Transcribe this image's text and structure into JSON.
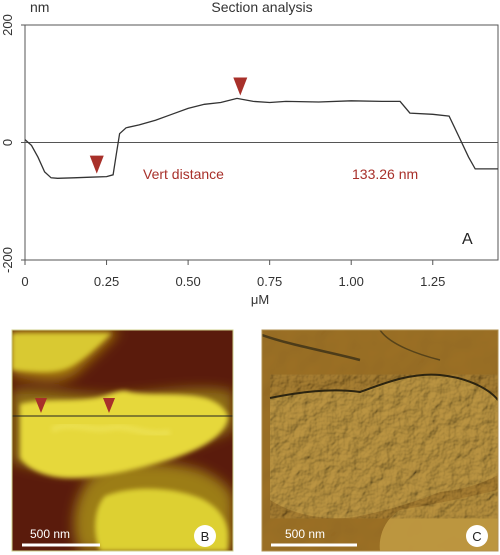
{
  "panel_a": {
    "title": "Section analysis",
    "unit_label": "nm",
    "xlabel": "μM",
    "panel_letter": "A",
    "measurement_label": "Vert distance",
    "measurement_value": "133.26 nm",
    "colors": {
      "profile": "#333333",
      "marker": "#a8302a",
      "measurement_text": "#a8302a"
    }
  },
  "panel_b": {
    "scalebar_label": "500 nm",
    "panel_letter": "B"
  },
  "panel_c": {
    "scalebar_label": "500 nm",
    "panel_letter": "C"
  },
  "chart_data": {
    "type": "line",
    "title": "Section analysis",
    "xlabel": "μM",
    "ylabel": "nm",
    "xlim": [
      0,
      1.45
    ],
    "ylim": [
      -200,
      200
    ],
    "x_ticks": [
      0,
      0.25,
      0.5,
      0.75,
      1.0,
      1.25
    ],
    "x_tick_labels": [
      "0",
      "0.25",
      "0.50",
      "0.75",
      "1.00",
      "1.25"
    ],
    "y_ticks": [
      200,
      0,
      -200
    ],
    "y_tick_labels": [
      "200",
      "0",
      "-200"
    ],
    "zero_line": true,
    "series": [
      {
        "x": [
          0,
          0.02,
          0.04,
          0.06,
          0.08,
          0.1,
          0.15,
          0.2,
          0.25,
          0.27,
          0.28,
          0.29,
          0.31,
          0.35,
          0.4,
          0.45,
          0.5,
          0.55,
          0.6,
          0.65,
          0.7,
          0.75,
          0.8,
          0.9,
          1.0,
          1.1,
          1.15,
          1.18,
          1.25,
          1.3,
          1.33,
          1.36,
          1.38,
          1.45
        ],
        "y": [
          5,
          -5,
          -25,
          -50,
          -60,
          -61,
          -60,
          -59,
          -58,
          -55,
          -20,
          15,
          25,
          30,
          38,
          48,
          58,
          65,
          68,
          75,
          70,
          68,
          70,
          69,
          71,
          70,
          70,
          50,
          48,
          45,
          10,
          -25,
          -45,
          -45
        ]
      }
    ],
    "markers": [
      {
        "x": 0.22,
        "y": -58
      },
      {
        "x": 0.66,
        "y": 75
      }
    ],
    "annotation": {
      "label": "Vert distance",
      "value": "133.26 nm"
    }
  }
}
